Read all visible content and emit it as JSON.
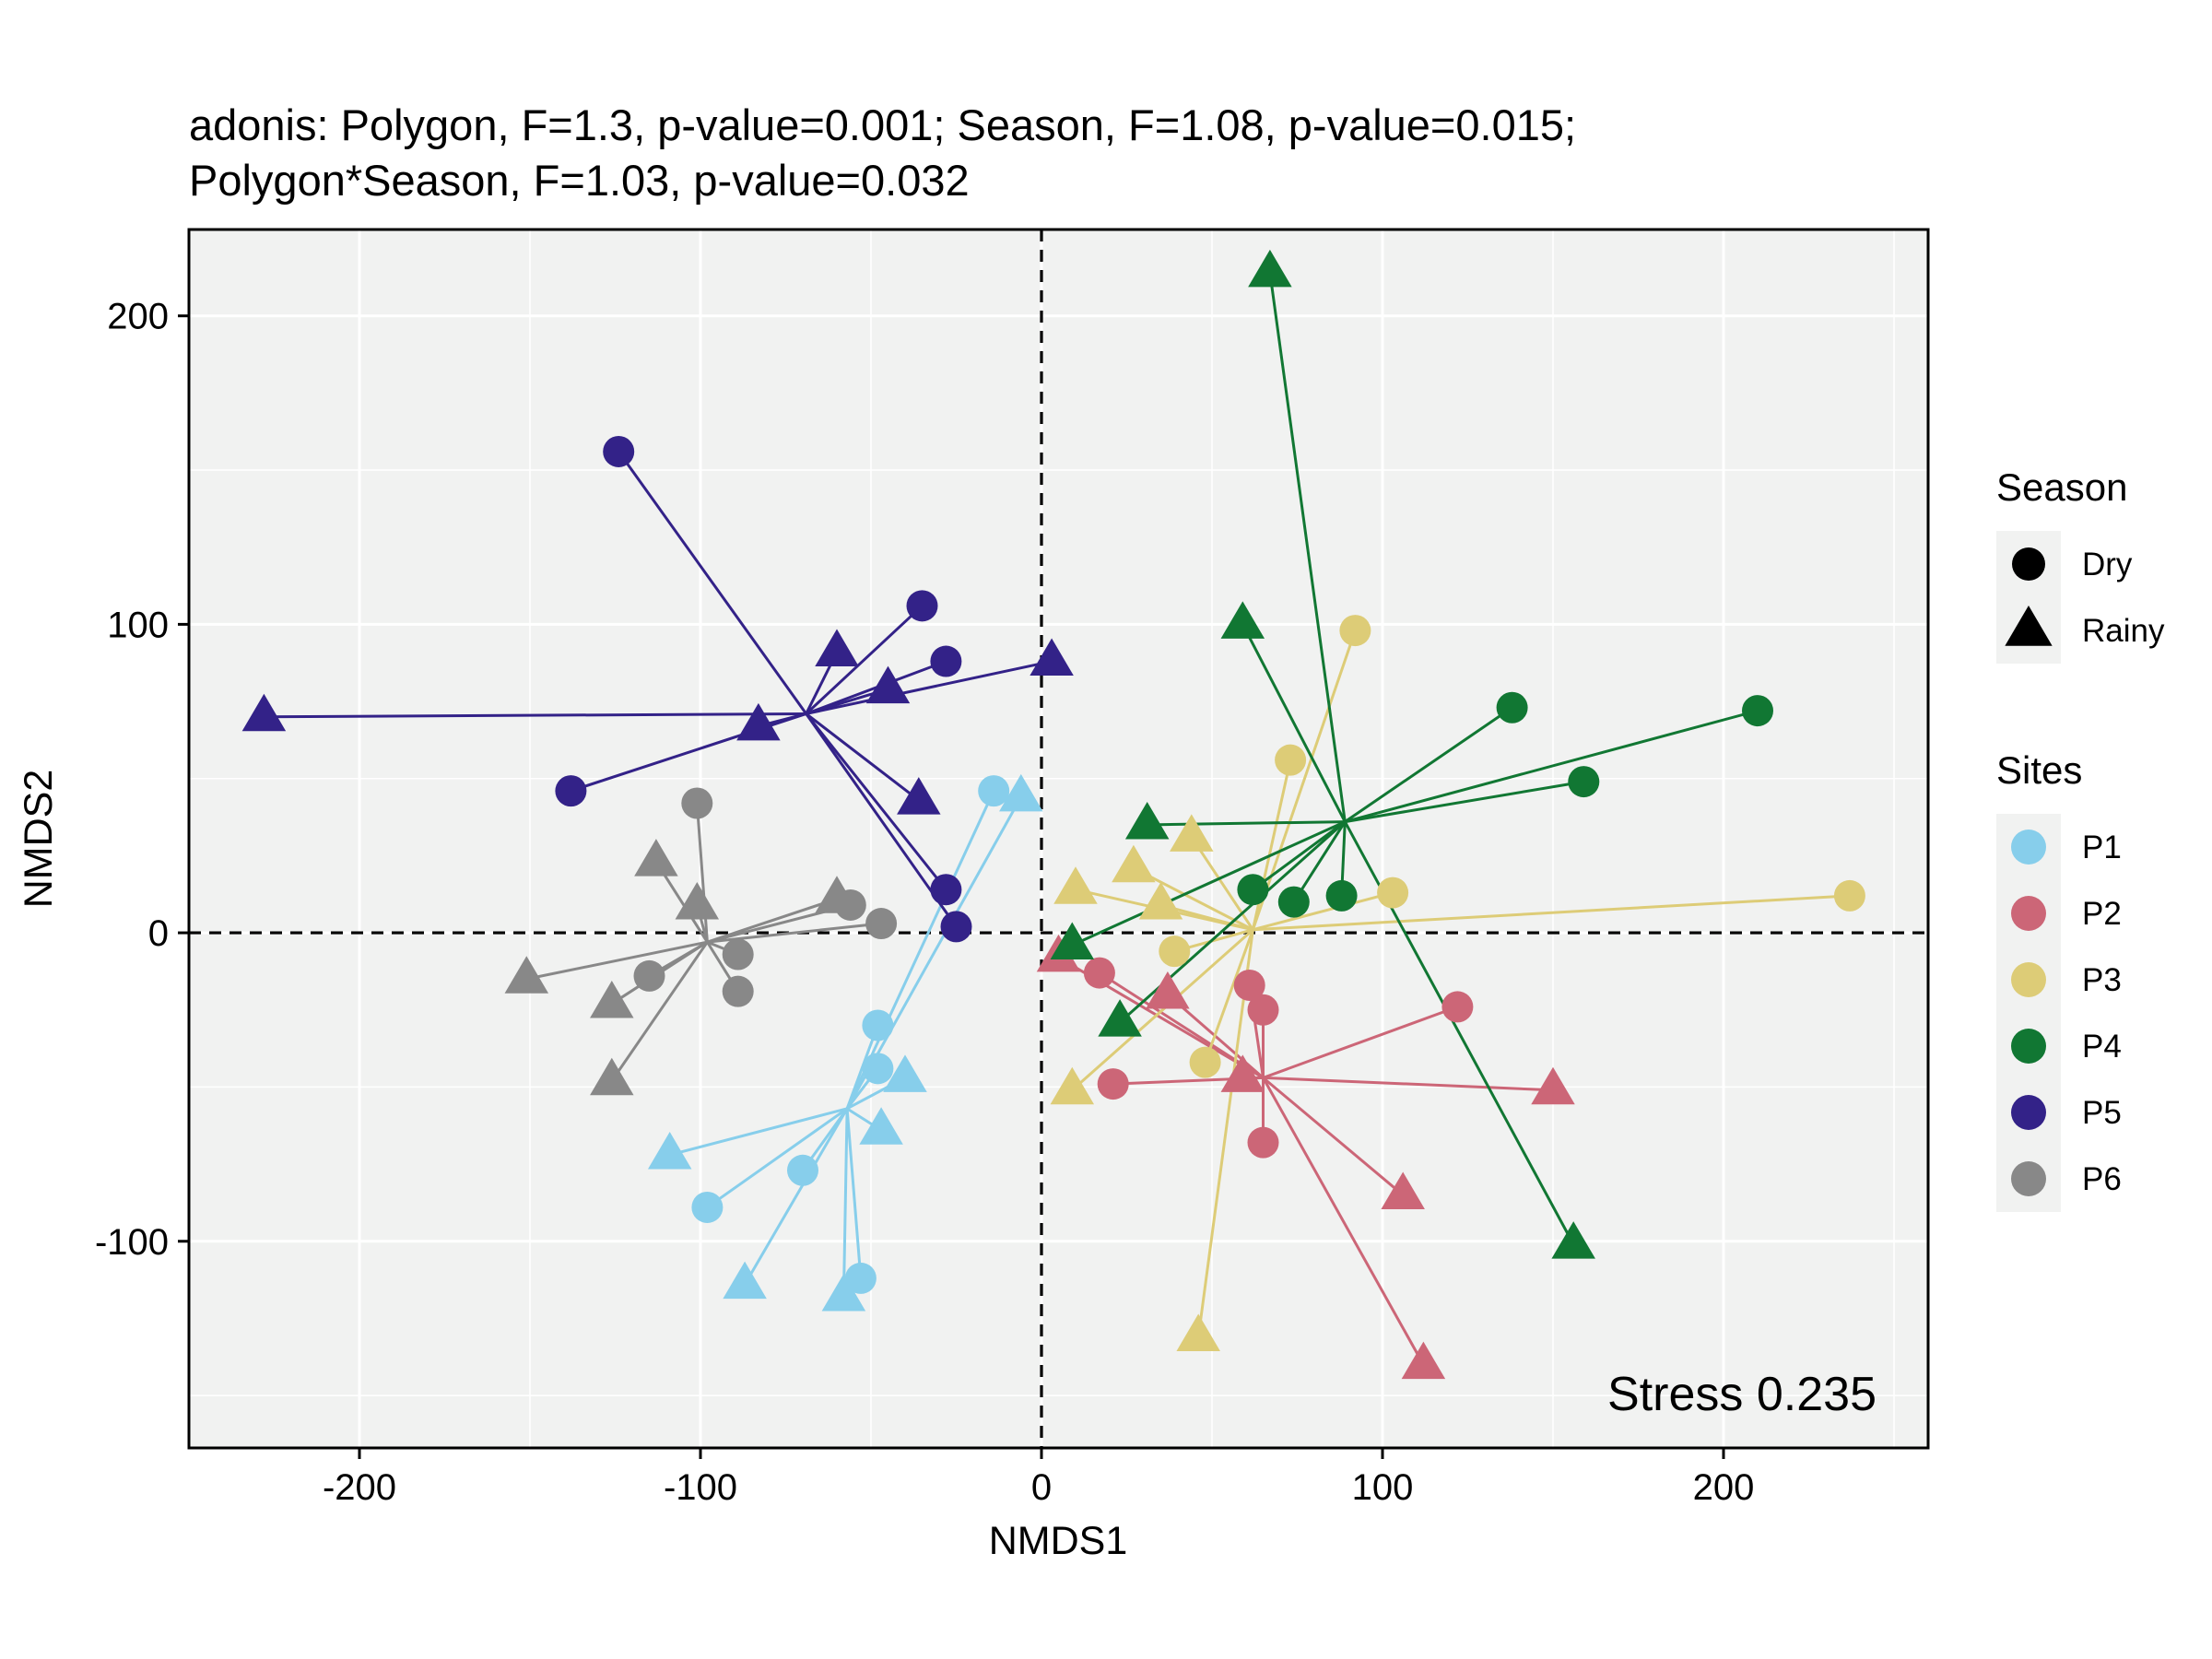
{
  "chart_data": {
    "type": "scatter",
    "title_lines": [
      "adonis: Polygon, F=1.3, p-value=0.001; Season, F=1.08, p-value=0.015;",
      "Polygon*Season, F=1.03, p-value=0.032"
    ],
    "xlabel": "NMDS1",
    "ylabel": "NMDS2",
    "xlim": [
      -250,
      260
    ],
    "ylim": [
      -167,
      228
    ],
    "xticks": [
      -200,
      -100,
      0,
      100,
      200
    ],
    "yticks": [
      -100,
      0,
      100,
      200
    ],
    "grid": true,
    "reference_lines": {
      "x": 0,
      "y": 0,
      "style": "dashed"
    },
    "annotation": "Stress 0.235",
    "legend": {
      "position": "right",
      "season": {
        "title": "Season",
        "items": [
          {
            "label": "Dry",
            "shape": "circle"
          },
          {
            "label": "Rainy",
            "shape": "triangle"
          }
        ]
      },
      "sites": {
        "title": "Sites",
        "items": [
          {
            "label": "P1",
            "color": "#87CEEB"
          },
          {
            "label": "P2",
            "color": "#CC6677"
          },
          {
            "label": "P3",
            "color": "#DDCC77"
          },
          {
            "label": "P4",
            "color": "#117733"
          },
          {
            "label": "P5",
            "color": "#332288"
          },
          {
            "label": "P6",
            "color": "#888888"
          }
        ]
      }
    },
    "series": [
      {
        "name": "P1",
        "color": "#87CEEB",
        "centroid": [
          -57,
          -57
        ],
        "points": [
          {
            "x": -14,
            "y": 46,
            "season": "Dry"
          },
          {
            "x": -48,
            "y": -30,
            "season": "Dry"
          },
          {
            "x": -48,
            "y": -44,
            "season": "Dry"
          },
          {
            "x": -70,
            "y": -77,
            "season": "Dry"
          },
          {
            "x": -98,
            "y": -89,
            "season": "Dry"
          },
          {
            "x": -53,
            "y": -112,
            "season": "Dry"
          },
          {
            "x": -6,
            "y": 44,
            "season": "Rainy"
          },
          {
            "x": -40,
            "y": -47,
            "season": "Rainy"
          },
          {
            "x": -47,
            "y": -64,
            "season": "Rainy"
          },
          {
            "x": -109,
            "y": -72,
            "season": "Rainy"
          },
          {
            "x": -87,
            "y": -114,
            "season": "Rainy"
          },
          {
            "x": -58,
            "y": -118,
            "season": "Rainy"
          }
        ]
      },
      {
        "name": "P2",
        "color": "#CC6677",
        "centroid": [
          65,
          -47
        ],
        "points": [
          {
            "x": 17,
            "y": -13,
            "season": "Dry"
          },
          {
            "x": 61,
            "y": -17,
            "season": "Dry"
          },
          {
            "x": 65,
            "y": -25,
            "season": "Dry"
          },
          {
            "x": 122,
            "y": -24,
            "season": "Dry"
          },
          {
            "x": 21,
            "y": -49,
            "season": "Dry"
          },
          {
            "x": 65,
            "y": -68,
            "season": "Dry"
          },
          {
            "x": 5,
            "y": -8,
            "season": "Rainy"
          },
          {
            "x": 37,
            "y": -20,
            "season": "Rainy"
          },
          {
            "x": 59,
            "y": -47,
            "season": "Rainy"
          },
          {
            "x": 150,
            "y": -51,
            "season": "Rainy"
          },
          {
            "x": 106,
            "y": -85,
            "season": "Rainy"
          },
          {
            "x": 112,
            "y": -140,
            "season": "Rainy"
          }
        ]
      },
      {
        "name": "P3",
        "color": "#DDCC77",
        "centroid": [
          62,
          1
        ],
        "points": [
          {
            "x": 92,
            "y": 98,
            "season": "Dry"
          },
          {
            "x": 73,
            "y": 56,
            "season": "Dry"
          },
          {
            "x": 103,
            "y": 13,
            "season": "Dry"
          },
          {
            "x": 237,
            "y": 12,
            "season": "Dry"
          },
          {
            "x": 39,
            "y": -6,
            "season": "Dry"
          },
          {
            "x": 48,
            "y": -42,
            "season": "Dry"
          },
          {
            "x": 44,
            "y": 31,
            "season": "Rainy"
          },
          {
            "x": 27,
            "y": 21,
            "season": "Rainy"
          },
          {
            "x": 10,
            "y": 14,
            "season": "Rainy"
          },
          {
            "x": 35,
            "y": 9,
            "season": "Rainy"
          },
          {
            "x": 9,
            "y": -51,
            "season": "Rainy"
          },
          {
            "x": 46,
            "y": -131,
            "season": "Rainy"
          }
        ]
      },
      {
        "name": "P4",
        "color": "#117733",
        "centroid": [
          89,
          36
        ],
        "points": [
          {
            "x": 138,
            "y": 73,
            "season": "Dry"
          },
          {
            "x": 210,
            "y": 72,
            "season": "Dry"
          },
          {
            "x": 159,
            "y": 49,
            "season": "Dry"
          },
          {
            "x": 62,
            "y": 14,
            "season": "Dry"
          },
          {
            "x": 74,
            "y": 10,
            "season": "Dry"
          },
          {
            "x": 88,
            "y": 12,
            "season": "Dry"
          },
          {
            "x": 67,
            "y": 214,
            "season": "Rainy"
          },
          {
            "x": 59,
            "y": 100,
            "season": "Rainy"
          },
          {
            "x": 31,
            "y": 35,
            "season": "Rainy"
          },
          {
            "x": 9,
            "y": -4,
            "season": "Rainy"
          },
          {
            "x": 23,
            "y": -29,
            "season": "Rainy"
          },
          {
            "x": 156,
            "y": -101,
            "season": "Rainy"
          }
        ]
      },
      {
        "name": "P5",
        "color": "#332288",
        "centroid": [
          -69,
          71
        ],
        "points": [
          {
            "x": -124,
            "y": 156,
            "season": "Dry"
          },
          {
            "x": -35,
            "y": 106,
            "season": "Dry"
          },
          {
            "x": -28,
            "y": 88,
            "season": "Dry"
          },
          {
            "x": -138,
            "y": 46,
            "season": "Dry"
          },
          {
            "x": -28,
            "y": 14,
            "season": "Dry"
          },
          {
            "x": -25,
            "y": 2,
            "season": "Dry"
          },
          {
            "x": -60,
            "y": 91,
            "season": "Rainy"
          },
          {
            "x": 3,
            "y": 88,
            "season": "Rainy"
          },
          {
            "x": -45,
            "y": 79,
            "season": "Rainy"
          },
          {
            "x": -228,
            "y": 70,
            "season": "Rainy"
          },
          {
            "x": -83,
            "y": 67,
            "season": "Rainy"
          },
          {
            "x": -36,
            "y": 43,
            "season": "Rainy"
          }
        ]
      },
      {
        "name": "P6",
        "color": "#888888",
        "centroid": [
          -98,
          -3
        ],
        "points": [
          {
            "x": -101,
            "y": 42,
            "season": "Dry"
          },
          {
            "x": -56,
            "y": 9,
            "season": "Dry"
          },
          {
            "x": -47,
            "y": 3,
            "season": "Dry"
          },
          {
            "x": -89,
            "y": -7,
            "season": "Dry"
          },
          {
            "x": -115,
            "y": -14,
            "season": "Dry"
          },
          {
            "x": -89,
            "y": -19,
            "season": "Dry"
          },
          {
            "x": -113,
            "y": 23,
            "season": "Rainy"
          },
          {
            "x": -101,
            "y": 9,
            "season": "Rainy"
          },
          {
            "x": -60,
            "y": 11,
            "season": "Rainy"
          },
          {
            "x": -151,
            "y": -15,
            "season": "Rainy"
          },
          {
            "x": -126,
            "y": -23,
            "season": "Rainy"
          },
          {
            "x": -126,
            "y": -48,
            "season": "Rainy"
          }
        ]
      }
    ]
  }
}
